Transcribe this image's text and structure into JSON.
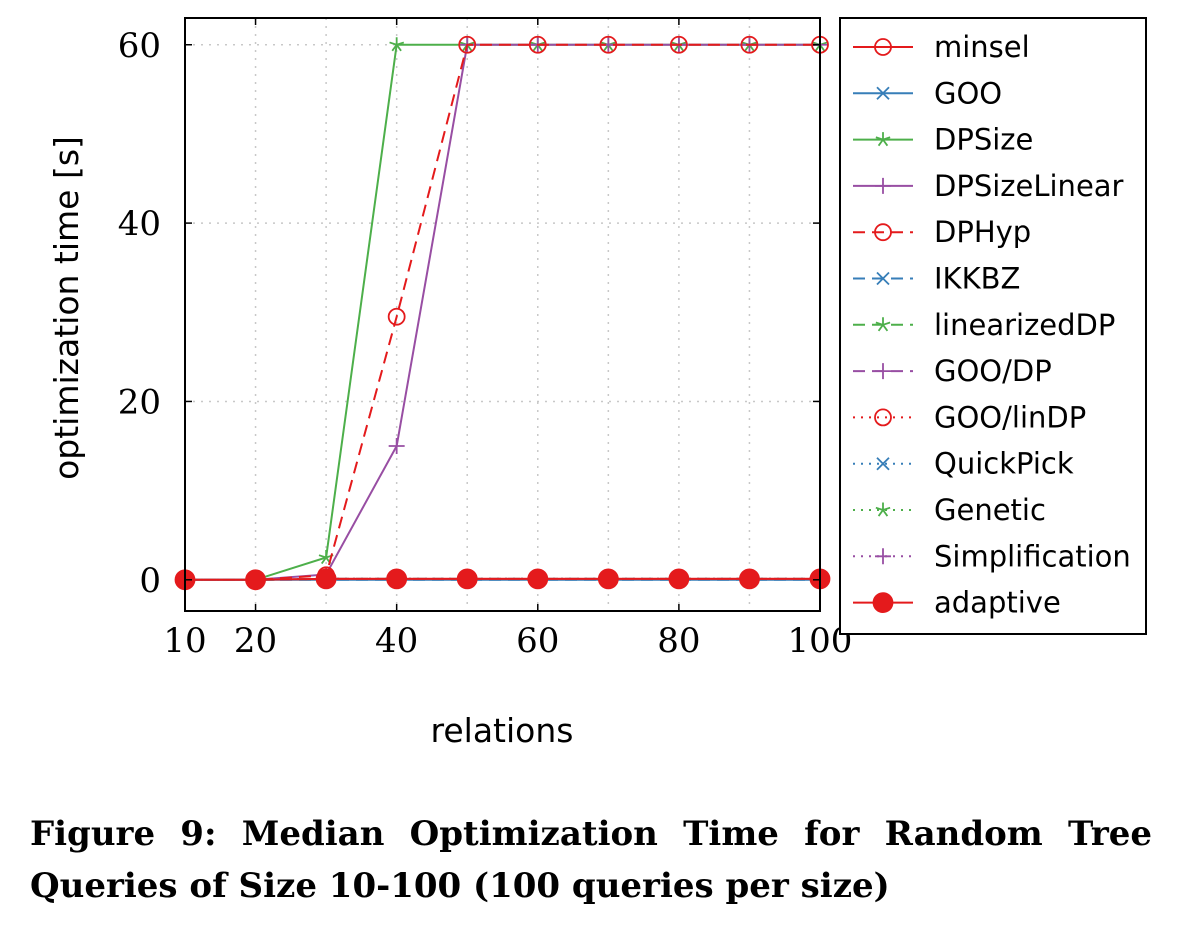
{
  "chart_data": {
    "type": "line",
    "xlabel": "relations",
    "ylabel": "optimization time [s]",
    "x": [
      10,
      20,
      30,
      40,
      50,
      60,
      70,
      80,
      90,
      100
    ],
    "xticks": [
      "10",
      "20",
      "40",
      "60",
      "80",
      "100"
    ],
    "xtick_values": [
      10,
      20,
      40,
      60,
      80,
      100
    ],
    "yticks": [
      "0",
      "20",
      "40",
      "60"
    ],
    "ytick_values": [
      0,
      20,
      40,
      60
    ],
    "xlim": [
      10,
      100
    ],
    "ylim": [
      -3.5,
      63
    ],
    "grid": "dotted",
    "legend_position": "outside-right",
    "series": [
      {
        "name": "minsel",
        "color": "#e41a1c",
        "dash": "solid",
        "marker": "circle-open",
        "values": [
          0,
          0,
          0.1,
          0.1,
          0.1,
          0.1,
          0.1,
          0.1,
          0.1,
          0.1
        ]
      },
      {
        "name": "GOO",
        "color": "#377eb8",
        "dash": "solid",
        "marker": "x",
        "values": [
          0,
          0,
          0,
          0,
          0,
          0,
          0,
          0,
          0,
          0
        ]
      },
      {
        "name": "DPSize",
        "color": "#4daf4a",
        "dash": "solid",
        "marker": "star",
        "values": [
          0,
          0,
          2.5,
          60,
          60,
          60,
          60,
          60,
          60,
          60
        ]
      },
      {
        "name": "DPSizeLinear",
        "color": "#984ea3",
        "dash": "solid",
        "marker": "plus",
        "values": [
          0,
          0,
          0.6,
          15,
          60,
          60,
          60,
          60,
          60,
          60
        ]
      },
      {
        "name": "DPHyp",
        "color": "#e41a1c",
        "dash": "dashed",
        "marker": "circle-open",
        "values": [
          0,
          0,
          0.5,
          29.5,
          60,
          60,
          60,
          60,
          60,
          60
        ]
      },
      {
        "name": "IKKBZ",
        "color": "#377eb8",
        "dash": "dashed",
        "marker": "x",
        "values": [
          0,
          0,
          0,
          0,
          0,
          0,
          0,
          0,
          0,
          0
        ]
      },
      {
        "name": "linearizedDP",
        "color": "#4daf4a",
        "dash": "dashed",
        "marker": "star",
        "values": [
          0,
          0,
          0.1,
          0.1,
          0.1,
          0.1,
          0.1,
          0.1,
          0.1,
          0.1
        ]
      },
      {
        "name": "GOO/DP",
        "color": "#984ea3",
        "dash": "dashed",
        "marker": "plus",
        "values": [
          0,
          0,
          0.1,
          0.1,
          0.1,
          0.1,
          0.1,
          0.1,
          0.1,
          0.1
        ]
      },
      {
        "name": "GOO/linDP",
        "color": "#e41a1c",
        "dash": "dotted",
        "marker": "circle-open",
        "values": [
          0,
          0,
          0.1,
          0.1,
          0.1,
          0.1,
          0.1,
          0.1,
          0.1,
          0.1
        ]
      },
      {
        "name": "QuickPick",
        "color": "#377eb8",
        "dash": "dotted",
        "marker": "x",
        "values": [
          0,
          0,
          0.1,
          0.1,
          0.1,
          0.1,
          0.1,
          0.1,
          0.1,
          0.1
        ]
      },
      {
        "name": "Genetic",
        "color": "#4daf4a",
        "dash": "dotted",
        "marker": "star",
        "values": [
          0,
          0,
          0.1,
          0.1,
          0.1,
          0.1,
          0.1,
          0.1,
          0.1,
          0.1
        ]
      },
      {
        "name": "Simplification",
        "color": "#984ea3",
        "dash": "dotted",
        "marker": "plus",
        "values": [
          0,
          0,
          0.1,
          0.1,
          0.1,
          0.1,
          0.1,
          0.1,
          0.1,
          0.1
        ]
      },
      {
        "name": "adaptive",
        "color": "#e41a1c",
        "dash": "solid",
        "marker": "circle-filled",
        "values": [
          0,
          0,
          0.1,
          0.1,
          0.1,
          0.1,
          0.1,
          0.1,
          0.1,
          0.1
        ]
      }
    ]
  },
  "caption": "Figure 9: Median Optimization Time for Random Tree Queries of Size 10-100 (100 queries per size)"
}
